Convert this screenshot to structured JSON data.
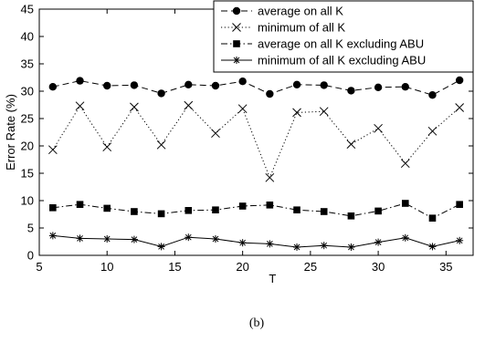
{
  "chart_data": {
    "type": "line",
    "xlabel": "T",
    "ylabel": "Error Rate (%)",
    "xlim": [
      5,
      37
    ],
    "ylim": [
      0,
      45
    ],
    "xticks": [
      5,
      10,
      15,
      20,
      25,
      30,
      35
    ],
    "yticks": [
      0,
      5,
      10,
      15,
      20,
      25,
      30,
      35,
      40,
      45
    ],
    "grid": false,
    "legend_position": "top-right",
    "x": [
      6,
      8,
      10,
      12,
      14,
      16,
      18,
      20,
      22,
      24,
      26,
      28,
      30,
      32,
      34,
      36
    ],
    "series": [
      {
        "name": "average on all K",
        "marker": "circle",
        "line_style": "dashed",
        "values": [
          30.8,
          31.9,
          31.0,
          31.1,
          29.6,
          31.2,
          31.0,
          31.8,
          29.5,
          31.2,
          31.1,
          30.1,
          30.7,
          30.8,
          29.3,
          32.0
        ]
      },
      {
        "name": "minimum of all K",
        "marker": "x",
        "line_style": "dotted",
        "values": [
          19.3,
          27.3,
          19.8,
          27.1,
          20.2,
          27.4,
          22.3,
          26.8,
          14.2,
          26.1,
          26.3,
          20.3,
          23.2,
          16.8,
          22.7,
          27.0
        ]
      },
      {
        "name": "average on all K excluding ABU",
        "marker": "square",
        "line_style": "dashdot",
        "values": [
          8.7,
          9.3,
          8.6,
          8.0,
          7.6,
          8.2,
          8.3,
          9.0,
          9.2,
          8.3,
          8.0,
          7.2,
          8.1,
          9.5,
          6.8,
          9.3
        ]
      },
      {
        "name": "minimum of all K excluding ABU",
        "marker": "asterisk",
        "line_style": "solid",
        "values": [
          3.6,
          3.1,
          3.0,
          2.9,
          1.6,
          3.3,
          3.0,
          2.3,
          2.1,
          1.5,
          1.8,
          1.5,
          2.4,
          3.2,
          1.6,
          2.7
        ]
      }
    ]
  },
  "caption": "(b)"
}
